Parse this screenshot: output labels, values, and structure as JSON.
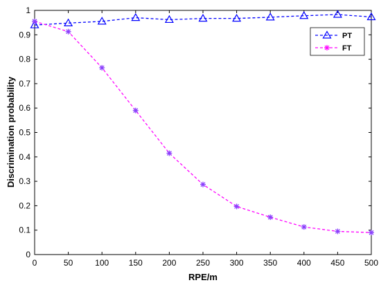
{
  "chart_data": {
    "type": "line",
    "title": "",
    "xlabel": "RPE/m",
    "ylabel": "Discrimination probability",
    "x": [
      0,
      50,
      100,
      150,
      200,
      250,
      300,
      350,
      400,
      450,
      500
    ],
    "xlim": [
      0,
      500
    ],
    "ylim": [
      0,
      1
    ],
    "xticks": [
      "0",
      "50",
      "100",
      "150",
      "200",
      "250",
      "300",
      "350",
      "400",
      "450",
      "500"
    ],
    "yticks": [
      "0",
      "0.1",
      "0.2",
      "0.3",
      "0.4",
      "0.5",
      "0.6",
      "0.7",
      "0.8",
      "0.9",
      "1"
    ],
    "grid": false,
    "legend_position": "top-right",
    "series": [
      {
        "name": "PT",
        "color": "#0000ff",
        "marker": "triangle",
        "line_style": "dashed",
        "values": [
          0.94,
          0.948,
          0.955,
          0.97,
          0.962,
          0.967,
          0.967,
          0.972,
          0.978,
          0.983,
          0.973
        ]
      },
      {
        "name": "FT",
        "color": "#ff00ff",
        "marker_color": "#8a3ffc",
        "marker": "asterisk",
        "line_style": "dashed",
        "values": [
          0.955,
          0.913,
          0.765,
          0.59,
          0.415,
          0.287,
          0.197,
          0.153,
          0.113,
          0.095,
          0.09
        ]
      }
    ]
  }
}
